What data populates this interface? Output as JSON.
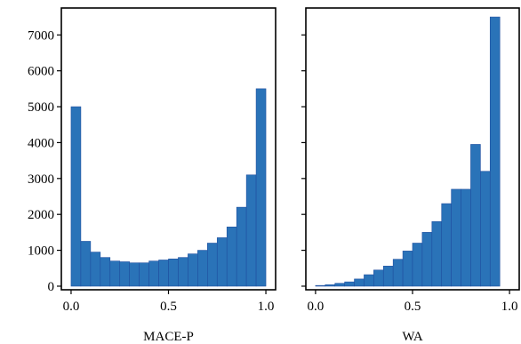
{
  "chart_data": [
    {
      "type": "histogram",
      "xlabel": "MACE-P",
      "ylabel": "",
      "xlim": [
        -0.05,
        1.05
      ],
      "ylim": [
        -100,
        7750
      ],
      "xticks": [
        "0.0",
        "0.5",
        "1.0"
      ],
      "yticks": [
        "0",
        "1000",
        "2000",
        "3000",
        "4000",
        "5000",
        "6000",
        "7000"
      ],
      "bin_width": 0.05,
      "bin_starts": [
        0.0,
        0.05,
        0.1,
        0.15,
        0.2,
        0.25,
        0.3,
        0.35,
        0.4,
        0.45,
        0.5,
        0.55,
        0.6,
        0.65,
        0.7,
        0.75,
        0.8,
        0.85,
        0.9,
        0.95
      ],
      "values": [
        5000,
        1250,
        950,
        800,
        700,
        680,
        650,
        650,
        700,
        730,
        760,
        800,
        900,
        1000,
        1200,
        1350,
        1650,
        2200,
        3100,
        5500
      ],
      "color": "#2a73b8",
      "edge_color": "#1f4fa0"
    },
    {
      "type": "histogram",
      "xlabel": "WA",
      "ylabel": "",
      "xlim": [
        -0.05,
        1.05
      ],
      "ylim": [
        -100,
        7750
      ],
      "xticks": [
        "0.0",
        "0.5",
        "1.0"
      ],
      "yticks": [
        "0",
        "1000",
        "2000",
        "3000",
        "4000",
        "5000",
        "6000",
        "7000"
      ],
      "bin_width": 0.05,
      "bin_starts": [
        0.0,
        0.05,
        0.1,
        0.15,
        0.2,
        0.25,
        0.3,
        0.35,
        0.4,
        0.45,
        0.5,
        0.55,
        0.6,
        0.65,
        0.7,
        0.75,
        0.8,
        0.85,
        0.9,
        0.95
      ],
      "values": [
        20,
        40,
        80,
        120,
        200,
        320,
        450,
        560,
        750,
        980,
        1200,
        1500,
        1800,
        2300,
        2700,
        2700,
        3950,
        3200,
        7500,
        0
      ],
      "color": "#2a73b8",
      "edge_color": "#1f4fa0"
    }
  ]
}
